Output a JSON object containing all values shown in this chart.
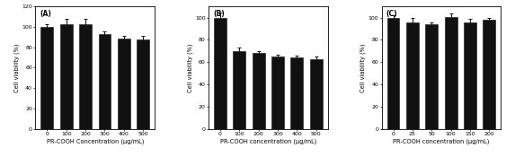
{
  "panels": [
    {
      "label": "(A)",
      "categories": [
        "0",
        "100",
        "200",
        "300",
        "400",
        "500"
      ],
      "values": [
        100,
        103,
        103,
        93,
        89,
        88
      ],
      "errors": [
        3,
        5,
        5,
        3,
        2,
        3
      ],
      "ylim": [
        0,
        120
      ],
      "yticks": [
        0,
        20,
        40,
        60,
        80,
        100,
        120
      ],
      "yticklabels": [
        "0",
        "20",
        "40",
        "60",
        "80",
        "100",
        "120"
      ],
      "ylabel": "Cell viability (%)",
      "xlabel": "PR-COOH Concentration (μg/mL)"
    },
    {
      "label": "(B)",
      "categories": [
        "0",
        "100",
        "200",
        "300",
        "400",
        "500"
      ],
      "values": [
        100,
        70,
        68,
        65,
        64,
        63
      ],
      "errors": [
        5,
        3,
        2,
        2,
        2,
        2
      ],
      "ylim": [
        0,
        110
      ],
      "yticks": [
        0,
        20,
        40,
        60,
        80,
        100
      ],
      "yticklabels": [
        "0",
        "20",
        "40",
        "60",
        "80",
        "100"
      ],
      "ylabel": "Cell viability (%)",
      "xlabel": "PR-COOH concentration (μg/mL)"
    },
    {
      "label": "(C)",
      "categories": [
        "0",
        "25",
        "50",
        "100",
        "150",
        "200"
      ],
      "values": [
        100,
        96,
        94,
        101,
        96,
        98
      ],
      "errors": [
        2,
        4,
        2,
        3,
        3,
        2
      ],
      "ylim": [
        0,
        110
      ],
      "yticks": [
        0,
        20,
        40,
        60,
        80,
        100
      ],
      "yticklabels": [
        "0",
        "20",
        "40",
        "60",
        "80",
        "100"
      ],
      "ylabel": "Cell viability (%)",
      "xlabel": "PR-COOH concentration (μg/mL)"
    }
  ],
  "bar_color": "#111111",
  "bar_edgecolor": "#111111",
  "error_color": "#111111",
  "background_color": "#ffffff",
  "title_fontsize": 5.5,
  "axis_label_fontsize": 4.8,
  "tick_fontsize": 4.5,
  "panel_label_fontsize": 5.5
}
